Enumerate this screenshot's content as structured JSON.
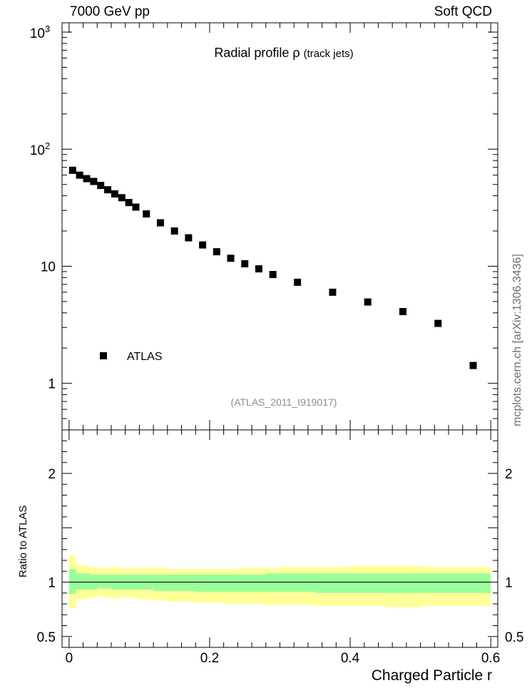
{
  "header": {
    "left": "7000 GeV pp",
    "right": "Soft QCD"
  },
  "title": {
    "main": "Radial profile  ρ",
    "sub": "(track jets)"
  },
  "reference": "(ATLAS_2011_I919017)",
  "side_label": "mcplots.cern.ch [arXiv:1306.3436]",
  "colors": {
    "marker": "#000000",
    "band_inner": "#99ff99",
    "band_outer": "#ffff99",
    "ref_text": "#8c8c8c"
  },
  "chart_data": [
    {
      "type": "scatter",
      "panel": "main",
      "yscale": "log",
      "ylim": [
        0.4,
        1200
      ],
      "xlim": [
        -0.01,
        0.61
      ],
      "ytick_labels": [
        "1",
        "10",
        "10^2",
        "10^3"
      ],
      "legend": "bottom-left",
      "series": [
        {
          "name": "ATLAS",
          "x": [
            0.005,
            0.015,
            0.025,
            0.035,
            0.045,
            0.055,
            0.065,
            0.075,
            0.085,
            0.095,
            0.11,
            0.13,
            0.15,
            0.17,
            0.19,
            0.21,
            0.23,
            0.25,
            0.27,
            0.29,
            0.325,
            0.375,
            0.425,
            0.475,
            0.525,
            0.575
          ],
          "y": [
            66,
            60,
            56,
            53,
            49,
            45,
            41.5,
            38.5,
            35,
            32,
            28,
            23.5,
            20,
            17.5,
            15.2,
            13.3,
            11.7,
            10.5,
            9.5,
            8.5,
            7.3,
            6.0,
            4.95,
            4.1,
            3.25,
            1.42
          ]
        }
      ]
    },
    {
      "type": "area",
      "panel": "ratio",
      "ylabel": "Ratio to ATLAS",
      "xlabel": "Charged Particle r",
      "ylim": [
        0.4,
        2.4
      ],
      "xlim": [
        -0.01,
        0.61
      ],
      "ytick_labels": [
        "0.5",
        "1",
        "2"
      ],
      "xtick_labels": [
        "0",
        "0.2",
        "0.4",
        "0.6"
      ],
      "bins": [
        0,
        0.01,
        0.02,
        0.03,
        0.04,
        0.05,
        0.06,
        0.07,
        0.08,
        0.09,
        0.1,
        0.12,
        0.14,
        0.16,
        0.18,
        0.2,
        0.22,
        0.24,
        0.26,
        0.28,
        0.3,
        0.35,
        0.4,
        0.45,
        0.5,
        0.55,
        0.6
      ],
      "band_outer_low": [
        0.76,
        0.84,
        0.85,
        0.86,
        0.87,
        0.86,
        0.85,
        0.86,
        0.86,
        0.85,
        0.84,
        0.83,
        0.82,
        0.82,
        0.81,
        0.81,
        0.8,
        0.8,
        0.8,
        0.79,
        0.79,
        0.78,
        0.78,
        0.77,
        0.78,
        0.78
      ],
      "band_outer_high": [
        1.25,
        1.16,
        1.15,
        1.14,
        1.13,
        1.13,
        1.14,
        1.13,
        1.13,
        1.13,
        1.13,
        1.13,
        1.12,
        1.12,
        1.12,
        1.12,
        1.12,
        1.13,
        1.13,
        1.13,
        1.14,
        1.14,
        1.15,
        1.15,
        1.14,
        1.14
      ],
      "band_inner_low": [
        0.89,
        0.93,
        0.93,
        0.93,
        0.94,
        0.94,
        0.93,
        0.93,
        0.93,
        0.93,
        0.93,
        0.92,
        0.92,
        0.92,
        0.91,
        0.91,
        0.91,
        0.91,
        0.91,
        0.91,
        0.91,
        0.9,
        0.9,
        0.9,
        0.9,
        0.9
      ],
      "band_inner_high": [
        1.12,
        1.08,
        1.08,
        1.07,
        1.07,
        1.07,
        1.07,
        1.07,
        1.07,
        1.07,
        1.07,
        1.07,
        1.07,
        1.07,
        1.07,
        1.07,
        1.07,
        1.07,
        1.07,
        1.08,
        1.08,
        1.08,
        1.08,
        1.08,
        1.08,
        1.08
      ],
      "reference_line": 1.0
    }
  ]
}
